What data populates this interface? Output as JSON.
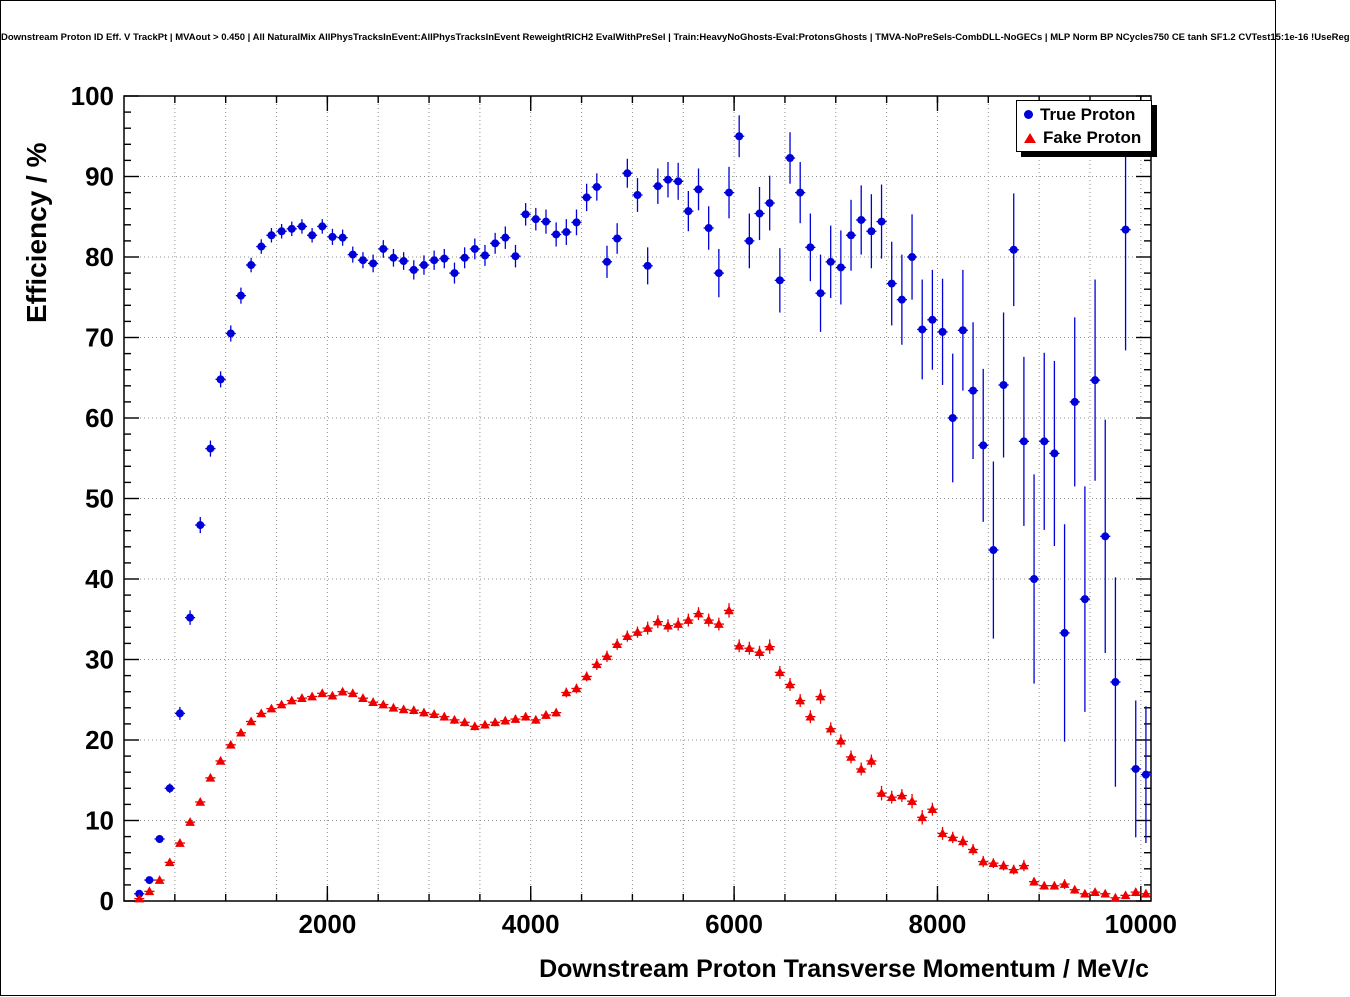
{
  "title": "Downstream Proton ID Eff. V TrackPt | MVAout > 0.450 | All NaturalMix AllPhysTracksInEvent:AllPhysTracksInEvent ReweightRICH2 EvalWithPreSel | Train:HeavyNoGhosts-Eval:ProtonsGhosts | TMVA-NoPreSels-CombDLL-NoGECs | MLP Norm BP NCycles750 CE tanh SF1.2 CVTest15:1e-16 !UseReg",
  "axes": {
    "x_label": "Downstream Proton Transverse Momentum / MeV/c",
    "y_label": "Efficiency / %"
  },
  "legend": {
    "entries": [
      {
        "label": "True Proton",
        "color": "#0000d9",
        "marker": "circle"
      },
      {
        "label": "Fake Proton",
        "color": "#ee0000",
        "marker": "triangle"
      }
    ]
  },
  "colors": {
    "grid": "#909090",
    "frame": "#000000",
    "background": "#ffffff",
    "true_proton": "#0000d9",
    "fake_proton": "#ee0000"
  },
  "chart_data": {
    "type": "scatter",
    "title": "Downstream Proton ID Eff. V TrackPt | MVAout > 0.450 | All NaturalMix AllPhysTracksInEvent:AllPhysTracksInEvent ReweightRICH2 EvalWithPreSel | Train:HeavyNoGhosts-Eval:ProtonsGhosts | TMVA-NoPreSels-CombDLL-NoGECs | MLP Norm BP NCycles750 CE tanh SF1.2 CVTest15:1e-16 !UseReg",
    "xlabel": "Downstream Proton Transverse Momentum / MeV/c",
    "ylabel": "Efficiency / %",
    "xlim": [
      0,
      10100
    ],
    "ylim": [
      0,
      100
    ],
    "grid": true,
    "grid_step_x": 500,
    "grid_step_y": 10,
    "x_minor_step": 500,
    "y_minor_step": 2,
    "xtick_values": [
      2000,
      4000,
      6000,
      8000,
      10000
    ],
    "xtick_labels": [
      "2000",
      "4000",
      "6000",
      "8000",
      "10000"
    ],
    "ytick_values": [
      0,
      10,
      20,
      30,
      40,
      50,
      60,
      70,
      80,
      90,
      100
    ],
    "ytick_labels": [
      "0",
      "10",
      "20",
      "30",
      "40",
      "50",
      "60",
      "70",
      "80",
      "90",
      "100"
    ],
    "legend_position": "top-right",
    "xerr": 50,
    "x": [
      150,
      250,
      350,
      450,
      550,
      650,
      750,
      850,
      950,
      1050,
      1150,
      1250,
      1350,
      1450,
      1550,
      1650,
      1750,
      1850,
      1950,
      2050,
      2150,
      2250,
      2350,
      2450,
      2550,
      2650,
      2750,
      2850,
      2950,
      3050,
      3150,
      3250,
      3350,
      3450,
      3550,
      3650,
      3750,
      3850,
      3950,
      4050,
      4150,
      4250,
      4350,
      4450,
      4550,
      4650,
      4750,
      4850,
      4950,
      5050,
      5150,
      5250,
      5350,
      5450,
      5550,
      5650,
      5750,
      5850,
      5950,
      6050,
      6150,
      6250,
      6350,
      6450,
      6550,
      6650,
      6750,
      6850,
      6950,
      7050,
      7150,
      7250,
      7350,
      7450,
      7550,
      7650,
      7750,
      7850,
      7950,
      8050,
      8150,
      8250,
      8350,
      8450,
      8550,
      8650,
      8750,
      8850,
      8950,
      9050,
      9150,
      9250,
      9350,
      9450,
      9550,
      9650,
      9750,
      9850,
      9950,
      10050
    ],
    "series": [
      {
        "name": "True Proton",
        "marker": "circle",
        "color": "#0000d9",
        "y": [
          0.9,
          2.6,
          7.7,
          14.0,
          23.3,
          35.2,
          46.7,
          56.2,
          64.8,
          70.5,
          75.2,
          79.0,
          81.3,
          82.7,
          83.2,
          83.5,
          83.8,
          82.7,
          83.8,
          82.5,
          82.4,
          80.3,
          79.6,
          79.2,
          81.0,
          79.9,
          79.5,
          78.4,
          79.0,
          79.6,
          79.8,
          78.0,
          79.9,
          81.0,
          80.2,
          81.7,
          82.4,
          80.1,
          85.3,
          84.7,
          84.4,
          82.8,
          83.1,
          84.3,
          87.4,
          88.7,
          79.4,
          82.3,
          90.4,
          87.7,
          78.9,
          88.8,
          89.6,
          89.4,
          85.7,
          88.4,
          83.6,
          78.0,
          88.0,
          95.0,
          82.0,
          85.4,
          86.7,
          77.1,
          92.3,
          88.0,
          81.2,
          75.5,
          79.4,
          78.7,
          82.7,
          84.6,
          83.2,
          84.4,
          76.7,
          74.7,
          80.0,
          71.0,
          72.2,
          70.7,
          60.0,
          70.9,
          63.4,
          56.6,
          43.6,
          64.1,
          80.9,
          57.1,
          40.0,
          57.1,
          55.6,
          33.3,
          62.0,
          37.5,
          64.7,
          45.3,
          27.2,
          83.4,
          16.4,
          15.7
        ],
        "yerr": [
          0.4,
          0.4,
          0.5,
          0.6,
          0.8,
          0.9,
          1.0,
          1.0,
          1.0,
          1.0,
          1.0,
          0.9,
          0.9,
          0.9,
          0.9,
          0.9,
          0.9,
          0.9,
          0.9,
          1.0,
          1.0,
          1.0,
          1.0,
          1.1,
          1.1,
          1.1,
          1.1,
          1.2,
          1.2,
          1.2,
          1.2,
          1.3,
          1.3,
          1.3,
          1.3,
          1.3,
          1.4,
          1.4,
          1.4,
          1.4,
          1.5,
          1.5,
          1.6,
          1.6,
          1.7,
          1.7,
          2.0,
          1.9,
          1.8,
          2.1,
          2.3,
          2.2,
          2.2,
          2.3,
          2.5,
          2.6,
          2.7,
          3.0,
          3.2,
          2.6,
          3.4,
          3.3,
          3.4,
          4.0,
          3.2,
          3.8,
          4.2,
          4.8,
          4.5,
          4.6,
          4.4,
          4.3,
          4.6,
          4.6,
          5.2,
          5.6,
          5.3,
          6.2,
          6.2,
          6.6,
          8.0,
          7.5,
          8.5,
          9.5,
          11.0,
          9.0,
          7.0,
          10.5,
          13.0,
          11.0,
          11.5,
          13.5,
          10.5,
          14.0,
          12.5,
          14.5,
          13.0,
          15.0,
          8.5,
          8.5
        ]
      },
      {
        "name": "Fake Proton",
        "marker": "triangle",
        "color": "#ee0000",
        "y": [
          0.3,
          1.2,
          2.6,
          4.8,
          7.2,
          9.8,
          12.3,
          15.3,
          17.4,
          19.4,
          20.9,
          22.3,
          23.3,
          23.9,
          24.4,
          24.9,
          25.2,
          25.4,
          25.8,
          25.5,
          26.0,
          25.8,
          25.2,
          24.7,
          24.4,
          24.0,
          23.8,
          23.7,
          23.4,
          23.2,
          22.9,
          22.5,
          22.2,
          21.7,
          21.9,
          22.2,
          22.4,
          22.6,
          22.9,
          22.5,
          23.1,
          23.4,
          25.9,
          26.4,
          27.9,
          29.4,
          30.4,
          31.9,
          32.9,
          33.4,
          33.9,
          34.7,
          34.2,
          34.4,
          34.9,
          35.7,
          34.9,
          34.4,
          36.1,
          31.7,
          31.4,
          30.9,
          31.6,
          28.4,
          26.9,
          24.9,
          22.9,
          25.4,
          21.4,
          19.9,
          17.9,
          16.4,
          17.4,
          13.4,
          12.9,
          13.1,
          12.4,
          10.4,
          11.4,
          8.4,
          7.9,
          7.4,
          6.4,
          4.9,
          4.7,
          4.4,
          3.9,
          4.4,
          2.4,
          1.9,
          1.9,
          2.1,
          1.4,
          0.9,
          1.1,
          0.9,
          0.4,
          0.7,
          1.1,
          0.9
        ],
        "yerr": [
          0.1,
          0.2,
          0.2,
          0.3,
          0.3,
          0.3,
          0.4,
          0.4,
          0.4,
          0.4,
          0.4,
          0.4,
          0.4,
          0.4,
          0.4,
          0.4,
          0.4,
          0.4,
          0.4,
          0.4,
          0.4,
          0.4,
          0.4,
          0.4,
          0.4,
          0.4,
          0.4,
          0.5,
          0.5,
          0.5,
          0.5,
          0.5,
          0.5,
          0.5,
          0.5,
          0.5,
          0.5,
          0.5,
          0.5,
          0.5,
          0.5,
          0.5,
          0.6,
          0.6,
          0.6,
          0.7,
          0.7,
          0.7,
          0.7,
          0.7,
          0.8,
          0.8,
          0.8,
          0.8,
          0.8,
          0.8,
          0.8,
          0.8,
          0.9,
          0.8,
          0.8,
          0.8,
          0.9,
          0.8,
          0.8,
          0.8,
          0.8,
          0.9,
          0.8,
          0.8,
          0.8,
          0.8,
          0.8,
          0.9,
          0.8,
          0.8,
          0.9,
          0.9,
          0.8,
          0.8,
          0.7,
          0.7,
          0.7,
          0.7,
          0.6,
          0.6,
          0.6,
          0.7,
          0.5,
          0.5,
          0.5,
          0.6,
          0.5,
          0.4,
          0.4,
          0.4,
          0.4,
          0.3,
          0.5,
          0.5
        ]
      }
    ]
  }
}
